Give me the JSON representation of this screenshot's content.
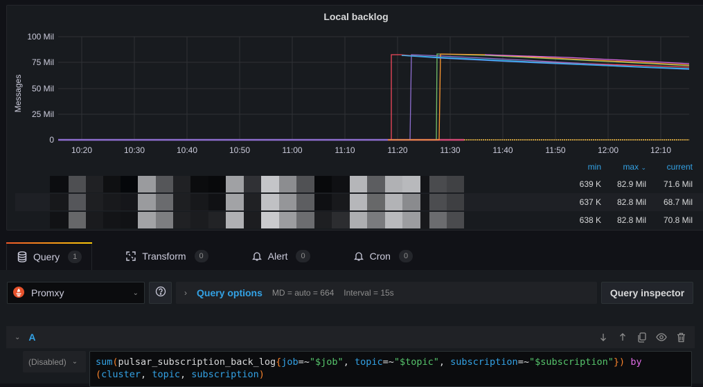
{
  "panel": {
    "title": "Local backlog"
  },
  "chart_data": {
    "type": "line",
    "title": "Local backlog",
    "xlabel": "",
    "ylabel": "Messages",
    "ylim": [
      0,
      100000000
    ],
    "y_ticks": [
      "0",
      "25 Mil",
      "50 Mil",
      "75 Mil",
      "100 Mil"
    ],
    "x_ticks": [
      "10:20",
      "10:30",
      "10:40",
      "10:50",
      "11:00",
      "11:10",
      "11:20",
      "11:30",
      "11:40",
      "11:50",
      "12:00",
      "12:10"
    ],
    "grid": true,
    "legend_position": "bottom-table",
    "series": [
      {
        "name": "series-1 (redacted)",
        "color": "#f2495c",
        "x": [
          "10:15",
          "11:19",
          "11:19",
          "12:15"
        ],
        "values": [
          0,
          82900000,
          82900000,
          71600000
        ]
      },
      {
        "name": "series-2 (redacted)",
        "color": "#8f6fd1",
        "x": [
          "10:15",
          "11:22",
          "11:22",
          "12:15"
        ],
        "values": [
          0,
          82800000,
          82800000,
          68700000
        ]
      },
      {
        "name": "series-3 (redacted)",
        "color": "#73bf69",
        "x": [
          "10:15",
          "11:27",
          "11:27",
          "12:15"
        ],
        "values": [
          0,
          82800000,
          82800000,
          70800000
        ]
      },
      {
        "name": "series-4 (redacted)",
        "color": "#ff9830",
        "x": [
          "10:15",
          "11:28",
          "11:28",
          "12:15"
        ],
        "values": [
          0,
          82800000,
          82800000,
          71000000
        ]
      },
      {
        "name": "series-5 (redacted)",
        "color": "#5794f2",
        "x": [
          "10:15",
          "11:20",
          "12:15"
        ],
        "values": [
          0,
          82000000,
          68500000
        ]
      }
    ]
  },
  "legend": {
    "headers": {
      "min": "min",
      "max": "max",
      "current": "current"
    },
    "sort_indicator": "chevron-down",
    "rows": [
      {
        "min": "639 K",
        "max": "82.9 Mil",
        "current": "71.6 Mil"
      },
      {
        "min": "637 K",
        "max": "82.8 Mil",
        "current": "68.7 Mil"
      },
      {
        "min": "638 K",
        "max": "82.8 Mil",
        "current": "70.8 Mil"
      }
    ]
  },
  "tabs": [
    {
      "label": "Query",
      "count": "1",
      "icon": "database-icon",
      "active": true
    },
    {
      "label": "Transform",
      "count": "0",
      "icon": "transform-icon",
      "active": false
    },
    {
      "label": "Alert",
      "count": "0",
      "icon": "bell-icon",
      "active": false
    },
    {
      "label": "Cron",
      "count": "0",
      "icon": "bell-icon",
      "active": false
    }
  ],
  "datasource": {
    "name": "Promxy",
    "icon": "prometheus-icon"
  },
  "query_options": {
    "label": "Query options",
    "md": "MD = auto = 664",
    "interval": "Interval = 15s"
  },
  "query_inspector": {
    "label": "Query inspector"
  },
  "query": {
    "ref_id": "A",
    "mode": "(Disabled)",
    "expr_tokens": {
      "fn": "sum",
      "open": "(",
      "metric": "pulsar_subscription_back_log",
      "lbrace": "{",
      "l1": "job",
      "op1": "=~",
      "v1": "\"$job\"",
      "c1": ", ",
      "l2": "topic",
      "op2": "=~",
      "v2": "\"$topic\"",
      "c2": ", ",
      "l3": "subscription",
      "op3": "=~",
      "v3": "\"$subscription\"",
      "rbrace": "}",
      "close": ")",
      "by": "by",
      "gopen": "(",
      "g1": "cluster",
      "g2": "topic",
      "g3": "subscription",
      "gclose": ")"
    }
  }
}
